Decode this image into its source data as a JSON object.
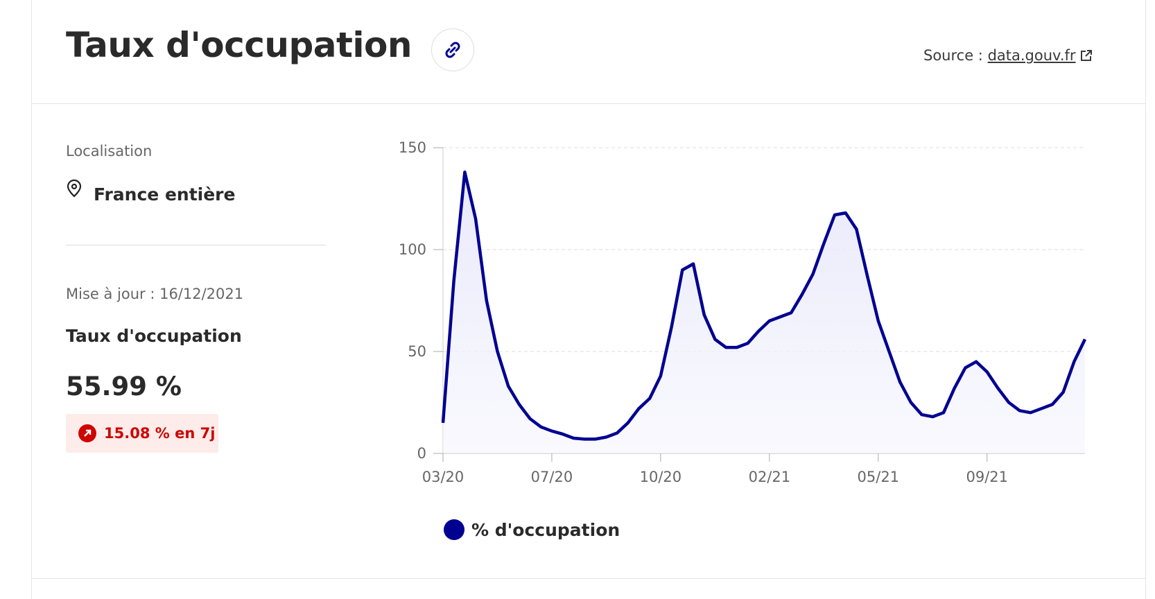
{
  "header": {
    "title": "Taux d'occupation",
    "source_label": "Source :",
    "source_link": "data.gouv.fr"
  },
  "sidebar": {
    "location_label": "Localisation",
    "location": "France entière",
    "updated": "Mise à jour : 16/12/2021",
    "indicator": "Taux d'occupation",
    "value": "55.99 %",
    "change": "15.08 % en 7j"
  },
  "chart_data": {
    "type": "line",
    "categories": [
      "03/20",
      null,
      null,
      null,
      null,
      null,
      null,
      null,
      null,
      null,
      "07/20",
      null,
      null,
      null,
      null,
      null,
      null,
      null,
      null,
      null,
      "10/20",
      null,
      null,
      null,
      null,
      null,
      null,
      null,
      null,
      null,
      "02/21",
      null,
      null,
      null,
      null,
      null,
      null,
      null,
      null,
      null,
      "05/21",
      null,
      null,
      null,
      null,
      null,
      null,
      null,
      null,
      null,
      "09/21",
      null,
      null,
      null,
      null,
      null,
      null,
      null,
      null,
      null
    ],
    "series": [
      {
        "name": "% d'occupation",
        "color": "#000091",
        "values": [
          15,
          85,
          138,
          115,
          75,
          50,
          33,
          24,
          17,
          13,
          11,
          9.5,
          7.5,
          7,
          7,
          8,
          10,
          15,
          22,
          27,
          38,
          62,
          90,
          93,
          68,
          56,
          52,
          52,
          54,
          60,
          65,
          67,
          69,
          78,
          88,
          103,
          117,
          118,
          110,
          87,
          65,
          50,
          35,
          25,
          19,
          18,
          20,
          32,
          42,
          45,
          40,
          32,
          25,
          21,
          20,
          22,
          24,
          30,
          45,
          56
        ]
      }
    ],
    "ylim": [
      0,
      150
    ],
    "yticks": [
      0,
      50,
      100,
      150
    ],
    "grid": true
  }
}
